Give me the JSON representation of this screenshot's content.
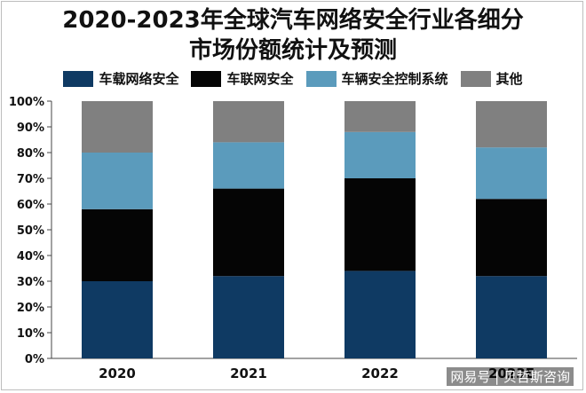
{
  "title_lines": [
    "2020-2023年全球汽车网络安全行业各细分",
    "市场份额统计及预测"
  ],
  "watermark": "网易号 | 贝哲斯咨询",
  "chart_data": {
    "type": "bar",
    "stacked": true,
    "categories": [
      "2020",
      "2021",
      "2022",
      "2023E"
    ],
    "series": [
      {
        "name": "车载网络安全",
        "color": "#0f3a63",
        "values": [
          30,
          32,
          34,
          32
        ]
      },
      {
        "name": "车联网安全",
        "color": "#050505",
        "values": [
          28,
          34,
          36,
          30
        ]
      },
      {
        "name": "车辆安全控制系统",
        "color": "#5b9bbc",
        "values": [
          22,
          18,
          18,
          20
        ]
      },
      {
        "name": "其他",
        "color": "#808080",
        "values": [
          20,
          16,
          12,
          18
        ]
      }
    ],
    "yticks": [
      "0%",
      "10%",
      "20%",
      "30%",
      "40%",
      "50%",
      "60%",
      "70%",
      "80%",
      "90%",
      "100%"
    ],
    "ylim": [
      0,
      100
    ],
    "legend_position": "top",
    "grid": false
  }
}
